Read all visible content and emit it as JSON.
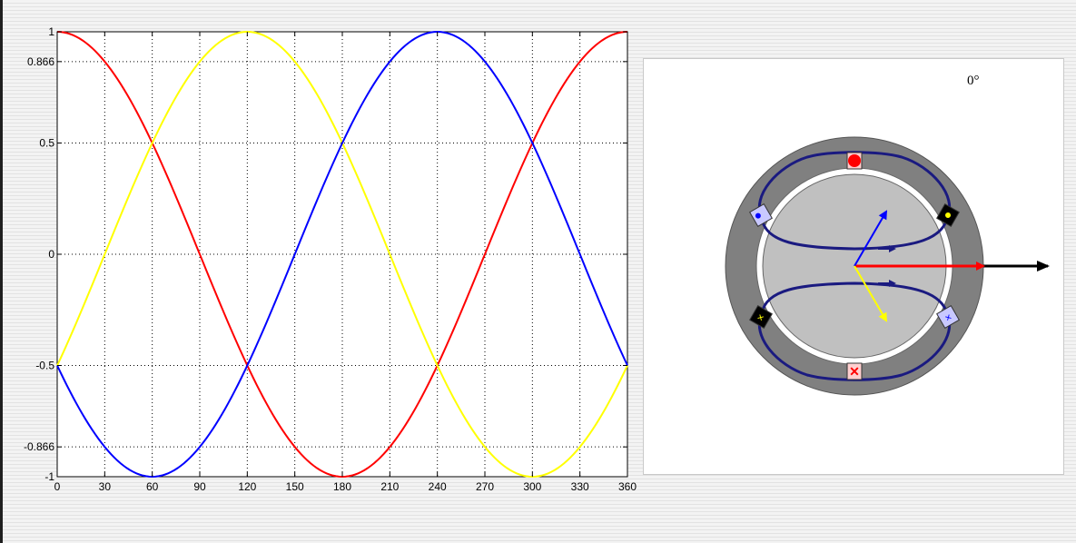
{
  "chart_data": {
    "type": "line",
    "xlim": [
      0,
      360
    ],
    "ylim": [
      -1,
      1
    ],
    "x_ticks": [
      0,
      30,
      60,
      90,
      120,
      150,
      180,
      210,
      240,
      270,
      300,
      330,
      360
    ],
    "x_tick_labels": [
      "0",
      "30",
      "60",
      "90",
      "120",
      "150",
      "180",
      "210",
      "240",
      "270",
      "300",
      "330",
      "360"
    ],
    "y_ticks": [
      1,
      0.866,
      0.5,
      0,
      -0.5,
      -0.866,
      -1
    ],
    "y_tick_labels": [
      "1",
      "0.866",
      "0.5",
      "0",
      "-0.5",
      "-0.866",
      "-1"
    ],
    "grid": true,
    "legend": "none",
    "series": [
      {
        "color": "#ff0000",
        "function": "cos(x)",
        "x": [
          0,
          60,
          120,
          180,
          240,
          300,
          360
        ],
        "y": [
          1,
          0.5,
          -0.5,
          -1,
          -0.5,
          0.5,
          1
        ]
      },
      {
        "color": "#ffff00",
        "function": "cos(x - 120)",
        "x": [
          0,
          60,
          120,
          180,
          240,
          300,
          360
        ],
        "y": [
          -0.5,
          0.5,
          1,
          0.5,
          -0.5,
          -1,
          -0.5
        ]
      },
      {
        "color": "#0000ff",
        "function": "cos(x + 120)",
        "x": [
          0,
          60,
          120,
          180,
          240,
          300,
          360
        ],
        "y": [
          -0.5,
          -1,
          -0.5,
          0.5,
          1,
          0.5,
          -0.5
        ]
      }
    ]
  },
  "motor": {
    "angle_label": "0°",
    "colors": {
      "stator": "#808080",
      "rotor": "#c0c0c0",
      "coil": "#1a1a80",
      "phase_a": "#ff0000",
      "phase_b": "#ffff00",
      "phase_c": "#0000ff",
      "resultant": "#000000"
    },
    "phasor_magnitudes": {
      "phase_a": 1,
      "phase_b": 0.5,
      "phase_c": 0.5,
      "resultant": 1.5
    }
  }
}
